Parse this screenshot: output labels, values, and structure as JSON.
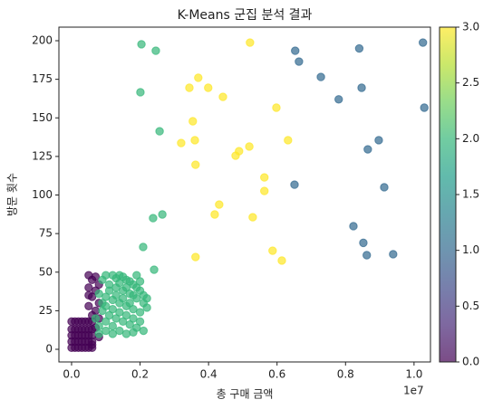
{
  "chart_data": {
    "type": "scatter",
    "title": "K-Means 군집 분석 결과",
    "x_label": "총 구매 금액",
    "y_label": "방문 횟수",
    "x_offset_label": "1e7",
    "xlim": [
      -0.037,
      1.048
    ],
    "ylim": [
      -8.2,
      208.8
    ],
    "xticks": [
      {
        "value": 0,
        "label": "0.0"
      },
      0.2,
      0.4,
      0.6,
      0.8,
      {
        "value": 1,
        "label": "1.0"
      }
    ],
    "yticks": [
      0,
      25,
      50,
      75,
      100,
      125,
      150,
      175,
      200
    ],
    "alpha": 0.7,
    "series": [
      {
        "color": "#440154",
        "x": [
          0,
          0,
          0,
          0,
          0,
          0.01,
          0.01,
          0.01,
          0.01,
          0.01,
          0.02,
          0.02,
          0.02,
          0.02,
          0.02,
          0.03,
          0.03,
          0.03,
          0.03,
          0.03,
          0.04,
          0.04,
          0.04,
          0.04,
          0.04,
          0.05,
          0.05,
          0.05,
          0.05,
          0.05,
          0.06,
          0.06,
          0.06,
          0.06,
          0.06,
          0.05,
          0.06,
          0.07,
          0.05,
          0.07,
          0.06,
          0.08,
          0.05,
          0.07,
          0.06,
          0.08,
          0.05,
          0.08,
          0.07,
          0.08,
          0.06
        ],
        "y": [
          1,
          5,
          9,
          13,
          18,
          1,
          5,
          9,
          13,
          18,
          1,
          5,
          9,
          13,
          18,
          1,
          5,
          9,
          13,
          18,
          1,
          5,
          9,
          13,
          18,
          1,
          5,
          9,
          13,
          18,
          1,
          5,
          9,
          13,
          18,
          48,
          45,
          47,
          40,
          38,
          34,
          30,
          28,
          25,
          22,
          20,
          35,
          42,
          14,
          8,
          3
        ]
      },
      {
        "color": "#31688e",
        "x": [
          1.026,
          0.653,
          0.664,
          0.84,
          0.728,
          0.78,
          0.847,
          1.03,
          0.897,
          0.865,
          0.913,
          0.651,
          0.823,
          0.852,
          0.862,
          0.939
        ],
        "y": [
          198.8,
          193.5,
          186.5,
          195,
          176.5,
          162,
          169.5,
          156.6,
          135.5,
          129.6,
          105,
          106.7,
          79.8,
          69,
          61,
          61.6
        ]
      },
      {
        "color": "#35b779",
        "x": [
          0.204,
          0.246,
          0.201,
          0.257,
          0.265,
          0.238,
          0.209,
          0.241,
          0.09,
          0.1,
          0.12,
          0.13,
          0.14,
          0.15,
          0.16,
          0.17,
          0.18,
          0.19,
          0.2,
          0.21,
          0.11,
          0.13,
          0.15,
          0.17,
          0.19,
          0.21,
          0.08,
          0.1,
          0.12,
          0.14,
          0.16,
          0.18,
          0.2,
          0.22,
          0.09,
          0.11,
          0.13,
          0.15,
          0.17,
          0.19,
          0.21,
          0.08,
          0.1,
          0.12,
          0.14,
          0.16,
          0.18,
          0.2,
          0.1,
          0.12,
          0.14,
          0.16,
          0.18,
          0.15,
          0.17,
          0.13,
          0.11,
          0.09,
          0.07,
          0.08,
          0.19,
          0.2,
          0.22,
          0.14,
          0.16,
          0.12,
          0.18,
          0.1
        ],
        "y": [
          197.7,
          193.5,
          166.6,
          141.3,
          87.4,
          85,
          66.3,
          51.6,
          45,
          48,
          48,
          46,
          48,
          47,
          45,
          44,
          42,
          40,
          38,
          35,
          42,
          40,
          38,
          36,
          33,
          30,
          36,
          34,
          32,
          30,
          28,
          26,
          24,
          27,
          25,
          22,
          20,
          18,
          16,
          14,
          12,
          15,
          12,
          10,
          12,
          10,
          11,
          18,
          28,
          26,
          24,
          22,
          20,
          33,
          30,
          35,
          38,
          30,
          20,
          10,
          48,
          44,
          33,
          43,
          40,
          15,
          35,
          18
        ]
      },
      {
        "color": "#fde725",
        "x": [
          0.521,
          0.37,
          0.344,
          0.399,
          0.442,
          0.598,
          0.354,
          0.36,
          0.632,
          0.32,
          0.519,
          0.489,
          0.479,
          0.362,
          0.563,
          0.563,
          0.431,
          0.418,
          0.529,
          0.587,
          0.614,
          0.362
        ],
        "y": [
          198.8,
          176,
          169.5,
          169.5,
          163.6,
          156.6,
          147.8,
          135.5,
          135.5,
          133.7,
          131.4,
          128.4,
          125.5,
          119.6,
          111.4,
          102.6,
          93.8,
          87.4,
          85.6,
          63.9,
          57.5,
          59.8
        ]
      }
    ],
    "colorbar": {
      "clim": [
        0,
        3
      ],
      "colors": [
        "#440154",
        "#482878",
        "#3e4989",
        "#31688e",
        "#26828e",
        "#1f9e89",
        "#35b779",
        "#6ece58",
        "#b5de2b",
        "#fde725"
      ],
      "ticks": [
        {
          "value": 0,
          "label": "0.0"
        },
        0.5,
        {
          "value": 1,
          "label": "1.0"
        },
        1.5,
        {
          "value": 2,
          "label": "2.0"
        },
        2.5,
        {
          "value": 3,
          "label": "3.0"
        }
      ]
    }
  }
}
